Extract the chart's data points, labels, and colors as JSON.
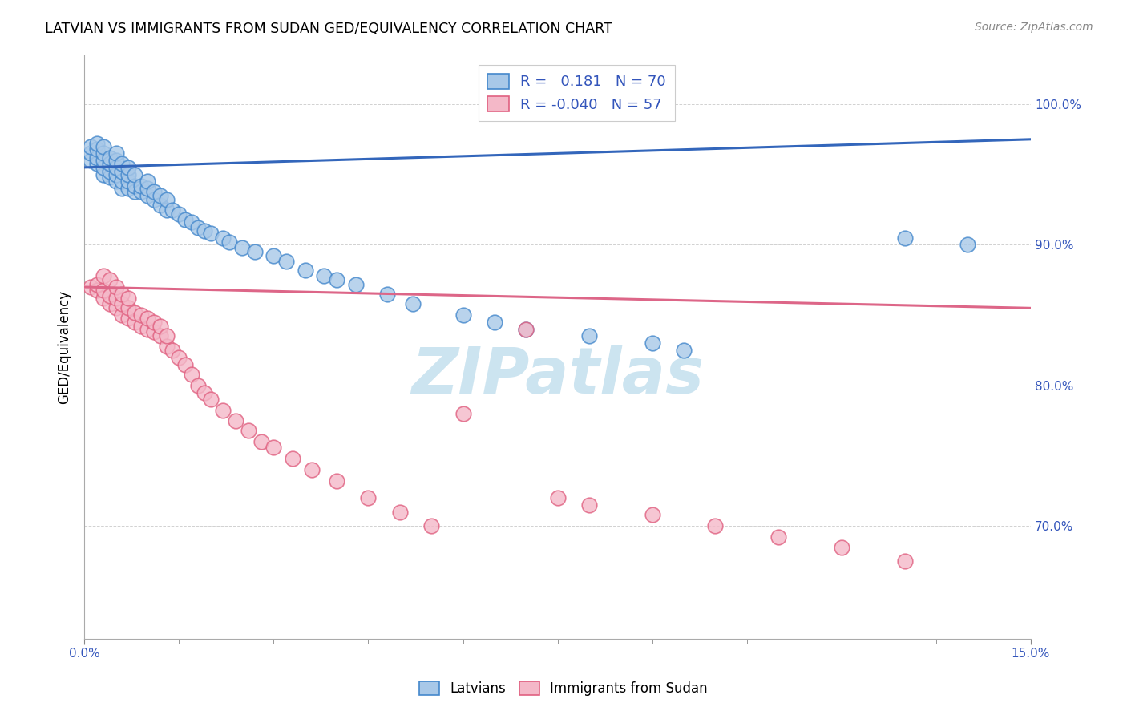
{
  "title": "LATVIAN VS IMMIGRANTS FROM SUDAN GED/EQUIVALENCY CORRELATION CHART",
  "source": "Source: ZipAtlas.com",
  "xlabel_range": [
    0.0,
    0.15
  ],
  "ylabel_range": [
    0.62,
    1.035
  ],
  "latvian_R": 0.181,
  "latvian_N": 70,
  "sudan_R": -0.04,
  "sudan_N": 57,
  "blue_fill": "#a8c8e8",
  "blue_edge": "#4488cc",
  "pink_fill": "#f4b8c8",
  "pink_edge": "#e06080",
  "blue_line": "#3366bb",
  "pink_line": "#dd6688",
  "legend_color": "#3355bb",
  "watermark_color": "#cce4f0",
  "lv_line_x0": 0.0,
  "lv_line_y0": 0.955,
  "lv_line_x1": 0.15,
  "lv_line_y1": 0.975,
  "sd_line_x0": 0.0,
  "sd_line_y0": 0.87,
  "sd_line_x1": 0.15,
  "sd_line_y1": 0.855,
  "lv_x": [
    0.001,
    0.001,
    0.001,
    0.002,
    0.002,
    0.002,
    0.002,
    0.003,
    0.003,
    0.003,
    0.003,
    0.003,
    0.004,
    0.004,
    0.004,
    0.004,
    0.005,
    0.005,
    0.005,
    0.005,
    0.005,
    0.006,
    0.006,
    0.006,
    0.006,
    0.007,
    0.007,
    0.007,
    0.007,
    0.008,
    0.008,
    0.008,
    0.009,
    0.009,
    0.01,
    0.01,
    0.01,
    0.011,
    0.011,
    0.012,
    0.012,
    0.013,
    0.013,
    0.014,
    0.015,
    0.016,
    0.017,
    0.018,
    0.019,
    0.02,
    0.022,
    0.023,
    0.025,
    0.027,
    0.03,
    0.032,
    0.035,
    0.038,
    0.04,
    0.043,
    0.048,
    0.052,
    0.06,
    0.065,
    0.07,
    0.08,
    0.09,
    0.095,
    0.13,
    0.14
  ],
  "lv_y": [
    0.96,
    0.965,
    0.97,
    0.958,
    0.962,
    0.968,
    0.972,
    0.95,
    0.955,
    0.96,
    0.965,
    0.97,
    0.948,
    0.952,
    0.958,
    0.962,
    0.945,
    0.95,
    0.955,
    0.96,
    0.965,
    0.94,
    0.945,
    0.952,
    0.958,
    0.94,
    0.945,
    0.95,
    0.955,
    0.938,
    0.942,
    0.95,
    0.938,
    0.942,
    0.935,
    0.94,
    0.945,
    0.932,
    0.938,
    0.928,
    0.935,
    0.925,
    0.932,
    0.925,
    0.922,
    0.918,
    0.916,
    0.912,
    0.91,
    0.908,
    0.905,
    0.902,
    0.898,
    0.895,
    0.892,
    0.888,
    0.882,
    0.878,
    0.875,
    0.872,
    0.865,
    0.858,
    0.85,
    0.845,
    0.84,
    0.835,
    0.83,
    0.825,
    0.905,
    0.9
  ],
  "sd_x": [
    0.001,
    0.002,
    0.002,
    0.003,
    0.003,
    0.003,
    0.004,
    0.004,
    0.004,
    0.005,
    0.005,
    0.005,
    0.006,
    0.006,
    0.006,
    0.007,
    0.007,
    0.007,
    0.008,
    0.008,
    0.009,
    0.009,
    0.01,
    0.01,
    0.011,
    0.011,
    0.012,
    0.012,
    0.013,
    0.013,
    0.014,
    0.015,
    0.016,
    0.017,
    0.018,
    0.019,
    0.02,
    0.022,
    0.024,
    0.026,
    0.028,
    0.03,
    0.033,
    0.036,
    0.04,
    0.045,
    0.05,
    0.055,
    0.06,
    0.07,
    0.075,
    0.08,
    0.09,
    0.1,
    0.11,
    0.12,
    0.13
  ],
  "sd_y": [
    0.87,
    0.868,
    0.872,
    0.862,
    0.868,
    0.878,
    0.858,
    0.864,
    0.875,
    0.855,
    0.862,
    0.87,
    0.85,
    0.858,
    0.865,
    0.848,
    0.855,
    0.862,
    0.845,
    0.852,
    0.842,
    0.85,
    0.84,
    0.848,
    0.838,
    0.845,
    0.835,
    0.842,
    0.828,
    0.835,
    0.825,
    0.82,
    0.815,
    0.808,
    0.8,
    0.795,
    0.79,
    0.782,
    0.775,
    0.768,
    0.76,
    0.756,
    0.748,
    0.74,
    0.732,
    0.72,
    0.71,
    0.7,
    0.78,
    0.84,
    0.72,
    0.715,
    0.708,
    0.7,
    0.692,
    0.685,
    0.675
  ]
}
